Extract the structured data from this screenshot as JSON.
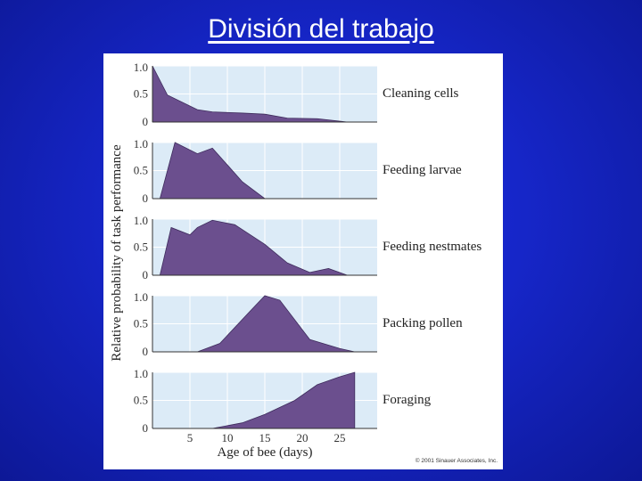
{
  "slide": {
    "title": "División del trabajo",
    "credit": "© 2001 Sinauer Associates, Inc."
  },
  "colors": {
    "background": "#1626c8",
    "panel_fill": "#dcebf7",
    "area_fill": "#6b4f8e",
    "grid": "#ffffff"
  },
  "chart_data": {
    "type": "area",
    "xlabel": "Age of bee (days)",
    "ylabel": "Relative probability of task performance",
    "x_ticks": [
      5,
      10,
      15,
      20,
      25
    ],
    "y_ticks": [
      "1.0",
      "0.5",
      "0"
    ],
    "xlim": [
      0,
      30
    ],
    "ylim": [
      0,
      1.0
    ],
    "grid": true,
    "series": [
      {
        "name": "Cleaning cells",
        "x": [
          0,
          2,
          6,
          8,
          12,
          15,
          18,
          22,
          26
        ],
        "y": [
          1.0,
          0.48,
          0.22,
          0.18,
          0.16,
          0.14,
          0.07,
          0.06,
          0.0
        ]
      },
      {
        "name": "Feeding larvae",
        "x": [
          1,
          3,
          6,
          8,
          10,
          12,
          15
        ],
        "y": [
          0.0,
          1.0,
          0.8,
          0.9,
          0.6,
          0.3,
          0.0
        ]
      },
      {
        "name": "Feeding nestmates",
        "x": [
          1,
          2.5,
          5,
          6,
          8,
          11,
          15,
          18,
          21,
          23.5,
          26
        ],
        "y": [
          0.0,
          0.85,
          0.72,
          0.85,
          0.98,
          0.9,
          0.55,
          0.22,
          0.05,
          0.12,
          0.0
        ]
      },
      {
        "name": "Packing pollen",
        "x": [
          6,
          9,
          13,
          15,
          17,
          21,
          25,
          27
        ],
        "y": [
          0.0,
          0.15,
          0.72,
          1.0,
          0.92,
          0.22,
          0.06,
          0.0
        ]
      },
      {
        "name": "Foraging",
        "x": [
          8,
          12,
          15,
          19,
          22,
          25,
          27
        ],
        "y": [
          0.0,
          0.1,
          0.25,
          0.5,
          0.78,
          0.92,
          1.0
        ]
      }
    ]
  }
}
